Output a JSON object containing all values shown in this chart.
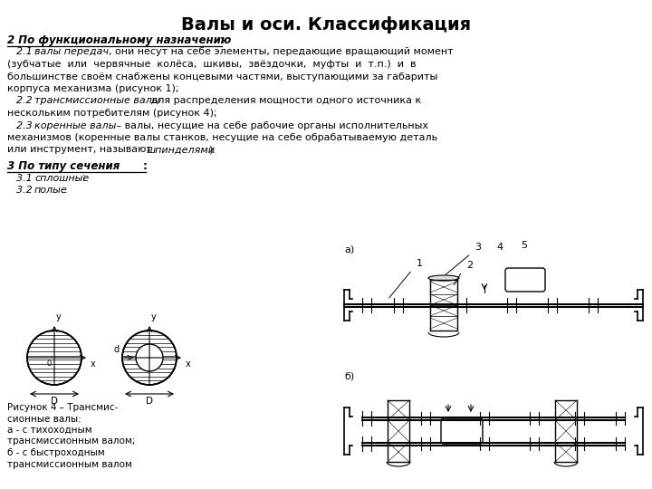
{
  "title": "Валы и оси. Классификация",
  "title_fontsize": 14,
  "background_color": "#ffffff",
  "text_color": "#000000",
  "font_size": 8.0,
  "caption_lines": [
    "Рисунок 4 – Трансмис-",
    "сионные валы:",
    "а - с тихоходным",
    "трансмиссионным валом;",
    "б - с быстроходным",
    "трансмиссионным валом"
  ]
}
